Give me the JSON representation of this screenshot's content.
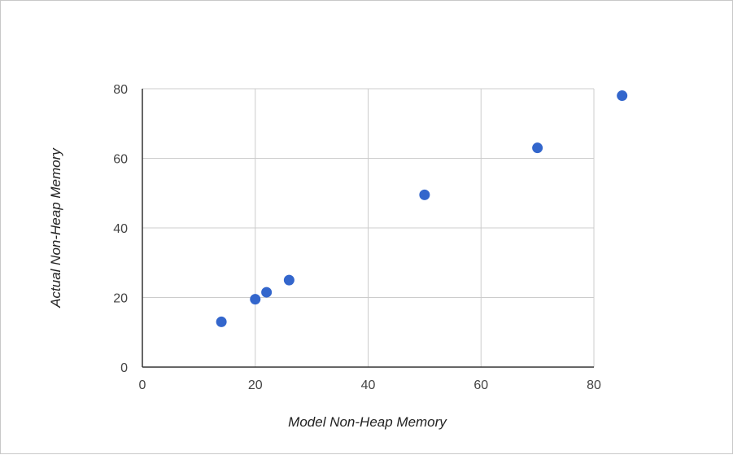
{
  "chart_data": {
    "type": "scatter",
    "xlabel": "Model Non-Heap Memory",
    "ylabel": "Actual Non-Heap Memory",
    "xlim": [
      0,
      80
    ],
    "ylim": [
      0,
      80
    ],
    "xticks": [
      0,
      20,
      40,
      60,
      80
    ],
    "yticks": [
      0,
      20,
      40,
      60,
      80
    ],
    "grid": true,
    "colors": {
      "points": "#3366cc",
      "grid": "#cccccc",
      "axis": "#333333"
    },
    "points": [
      {
        "x": 14,
        "y": 13
      },
      {
        "x": 20,
        "y": 19.5
      },
      {
        "x": 22,
        "y": 21.5
      },
      {
        "x": 26,
        "y": 25
      },
      {
        "x": 50,
        "y": 49.5
      },
      {
        "x": 70,
        "y": 63
      },
      {
        "x": 85,
        "y": 78
      }
    ]
  }
}
